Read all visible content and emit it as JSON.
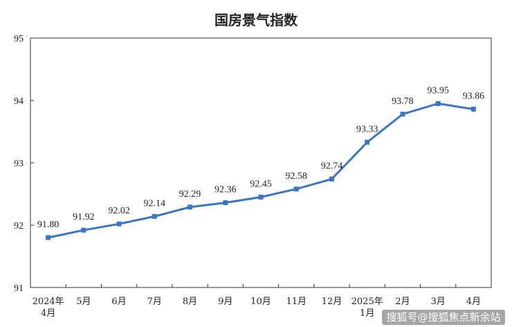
{
  "chart_data": {
    "type": "line",
    "title": "国房景气指数",
    "categories": [
      [
        "2024年",
        "4月"
      ],
      [
        "5月"
      ],
      [
        "6月"
      ],
      [
        "7月"
      ],
      [
        "8月"
      ],
      [
        "9月"
      ],
      [
        "10月"
      ],
      [
        "11月"
      ],
      [
        "12月"
      ],
      [
        "2025年",
        "1月"
      ],
      [
        "2月"
      ],
      [
        "3月"
      ],
      [
        "4月"
      ]
    ],
    "values": [
      91.8,
      91.92,
      92.02,
      92.14,
      92.29,
      92.36,
      92.45,
      92.58,
      92.74,
      93.33,
      93.78,
      93.95,
      93.86
    ],
    "data_labels": [
      "91.80",
      "91.92",
      "92.02",
      "92.14",
      "92.29",
      "92.36",
      "92.45",
      "92.58",
      "92.74",
      "93.33",
      "93.78",
      "93.95",
      "93.86"
    ],
    "ylim": [
      91,
      95
    ],
    "yticks": [
      "91",
      "92",
      "93",
      "94",
      "95"
    ],
    "grid": false,
    "colors": {
      "line": "#3a76c4",
      "axis": "#333333"
    }
  },
  "watermark": "搜狐号@搜狐焦点新余站"
}
